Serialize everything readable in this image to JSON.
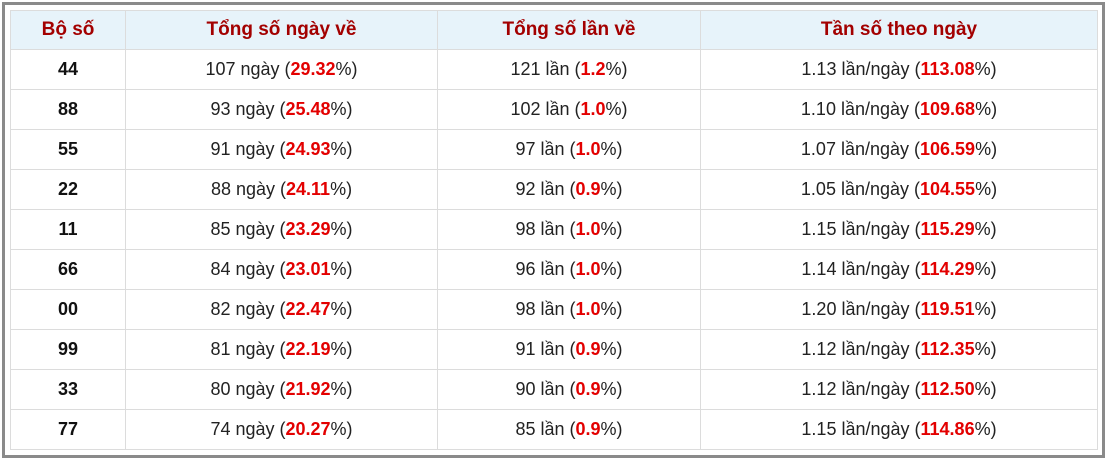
{
  "table": {
    "header": [
      "Bộ số",
      "Tổng số ngày về",
      "Tổng số lần về",
      "Tần số theo ngày"
    ],
    "rows": [
      [
        "44",
        [
          "107 ngày (",
          "29.32",
          "%)"
        ],
        [
          "121 lần (",
          "1.2",
          "%)"
        ],
        [
          "1.13 lần/ngày (",
          "113.08",
          "%)"
        ]
      ],
      [
        "88",
        [
          "93 ngày (",
          "25.48",
          "%)"
        ],
        [
          "102 lần (",
          "1.0",
          "%)"
        ],
        [
          "1.10 lần/ngày (",
          "109.68",
          "%)"
        ]
      ],
      [
        "55",
        [
          "91 ngày (",
          "24.93",
          "%)"
        ],
        [
          "97 lần (",
          "1.0",
          "%)"
        ],
        [
          "1.07 lần/ngày (",
          "106.59",
          "%)"
        ]
      ],
      [
        "22",
        [
          "88 ngày (",
          "24.11",
          "%)"
        ],
        [
          "92 lần (",
          "0.9",
          "%)"
        ],
        [
          "1.05 lần/ngày (",
          "104.55",
          "%)"
        ]
      ],
      [
        "11",
        [
          "85 ngày (",
          "23.29",
          "%)"
        ],
        [
          "98 lần (",
          "1.0",
          "%)"
        ],
        [
          "1.15 lần/ngày (",
          "115.29",
          "%)"
        ]
      ],
      [
        "66",
        [
          "84 ngày (",
          "23.01",
          "%)"
        ],
        [
          "96 lần (",
          "1.0",
          "%)"
        ],
        [
          "1.14 lần/ngày (",
          "114.29",
          "%)"
        ]
      ],
      [
        "00",
        [
          "82 ngày (",
          "22.47",
          "%)"
        ],
        [
          "98 lần (",
          "1.0",
          "%)"
        ],
        [
          "1.20 lần/ngày (",
          "119.51",
          "%)"
        ]
      ],
      [
        "99",
        [
          "81 ngày (",
          "22.19",
          "%)"
        ],
        [
          "91 lần (",
          "0.9",
          "%)"
        ],
        [
          "1.12 lần/ngày (",
          "112.35",
          "%)"
        ]
      ],
      [
        "33",
        [
          "80 ngày (",
          "21.92",
          "%)"
        ],
        [
          "90 lần (",
          "0.9",
          "%)"
        ],
        [
          "1.12 lần/ngày (",
          "112.50",
          "%)"
        ]
      ],
      [
        "77",
        [
          "74 ngày (",
          "20.27",
          "%)"
        ],
        [
          "85 lần (",
          "0.9",
          "%)"
        ],
        [
          "1.15 lần/ngày (",
          "114.86",
          "%)"
        ]
      ]
    ]
  }
}
